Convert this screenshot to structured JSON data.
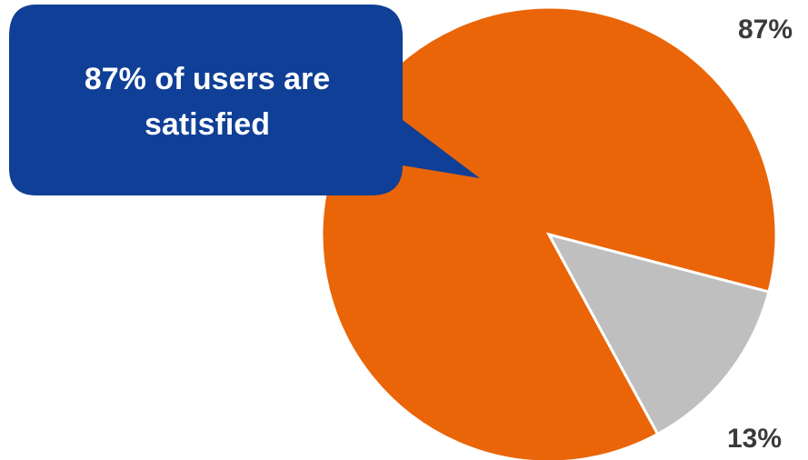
{
  "chart_data": {
    "type": "pie",
    "values": [
      87,
      13
    ],
    "data_labels": [
      "87%",
      "13%"
    ],
    "colors": [
      "#ea6508",
      "#bfbfbf"
    ],
    "legend": false
  },
  "callout": {
    "line1": "87%  of users are",
    "line2": "satisfied",
    "color": "#0f3f96",
    "text_color": "#ffffff"
  }
}
